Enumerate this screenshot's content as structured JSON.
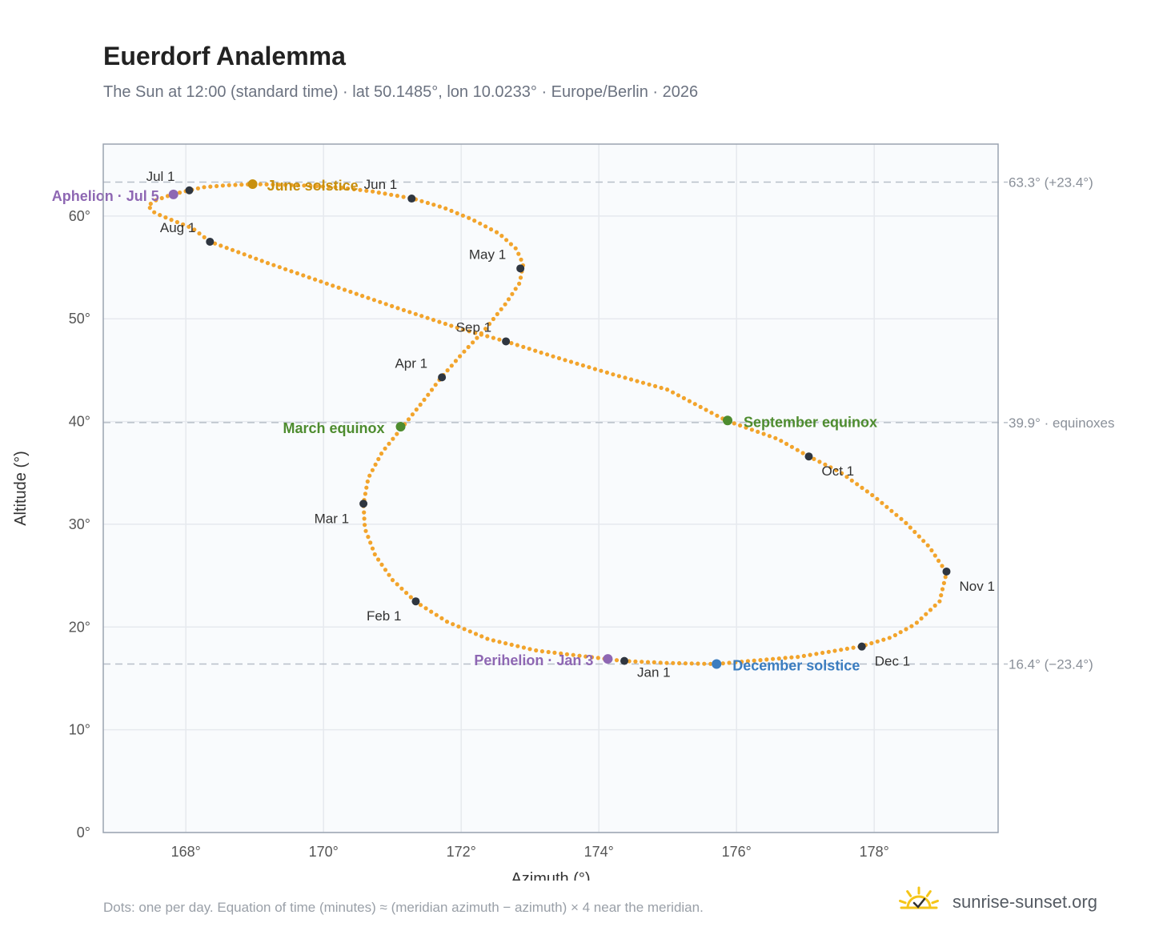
{
  "header": {
    "title": "Euerdorf Analemma",
    "subtitle": "The Sun at 12:00 (standard time) · lat 50.1485°, lon 10.0233° · Europe/Berlin · 2026"
  },
  "footer": {
    "note": "Dots: one per day. Equation of time (minutes) ≈ (meridian azimuth − azimuth) × 4 near the meridian.",
    "brand": "sunrise-sunset.org"
  },
  "colors": {
    "path": "#f2a42c",
    "month_dot": "#2f3640",
    "equinox": "#4e8c2f",
    "june_solstice": "#c8900f",
    "december_solstice": "#3b7dc0",
    "apsis": "#8e67b3",
    "ref_line": "#b8bfc8",
    "grid": "#e6e9ee",
    "plot_bg": "#f9fbfd",
    "frame": "#9aa3b0",
    "logo": "#f5c518"
  },
  "chart_data": {
    "type": "scatter",
    "xlabel": "Azimuth (°)",
    "ylabel": "Altitude (°)",
    "xlim": [
      166.8,
      179.8
    ],
    "ylim": [
      0,
      67
    ],
    "xticks": [
      168,
      170,
      172,
      174,
      176,
      178
    ],
    "xtick_labels": [
      "168°",
      "170°",
      "172°",
      "174°",
      "176°",
      "178°"
    ],
    "yticks": [
      0,
      10,
      20,
      30,
      40,
      50,
      60
    ],
    "ytick_labels": [
      "0°",
      "10°",
      "20°",
      "30°",
      "40°",
      "50°",
      "60°"
    ],
    "grid": true,
    "path_points": [
      [
        174.35,
        16.7
      ],
      [
        173.85,
        17.1
      ],
      [
        173.1,
        17.7
      ],
      [
        172.4,
        18.8
      ],
      [
        171.8,
        20.5
      ],
      [
        171.35,
        22.4
      ],
      [
        171.0,
        24.6
      ],
      [
        170.75,
        27.0
      ],
      [
        170.6,
        29.6
      ],
      [
        170.58,
        32.0
      ],
      [
        170.65,
        34.5
      ],
      [
        170.85,
        37.0
      ],
      [
        171.15,
        39.5
      ],
      [
        171.45,
        42.0
      ],
      [
        171.7,
        44.2
      ],
      [
        172.0,
        46.5
      ],
      [
        172.35,
        49.0
      ],
      [
        172.65,
        51.5
      ],
      [
        172.85,
        53.5
      ],
      [
        172.9,
        55.3
      ],
      [
        172.8,
        56.8
      ],
      [
        172.55,
        58.3
      ],
      [
        172.15,
        59.7
      ],
      [
        171.75,
        60.8
      ],
      [
        171.3,
        61.7
      ],
      [
        170.7,
        62.4
      ],
      [
        170.2,
        62.8
      ],
      [
        169.6,
        63.0
      ],
      [
        169.0,
        63.1
      ],
      [
        168.6,
        63.0
      ],
      [
        168.25,
        62.8
      ],
      [
        168.05,
        62.5
      ],
      [
        167.8,
        62.1
      ],
      [
        167.55,
        61.5
      ],
      [
        167.45,
        61.0
      ],
      [
        167.55,
        60.3
      ],
      [
        167.8,
        59.6
      ],
      [
        168.1,
        58.8
      ],
      [
        168.35,
        57.5
      ],
      [
        169.2,
        55.4
      ],
      [
        170.1,
        53.3
      ],
      [
        171.05,
        51.1
      ],
      [
        172.0,
        49.0
      ],
      [
        172.65,
        47.8
      ],
      [
        173.4,
        46.2
      ],
      [
        174.2,
        44.6
      ],
      [
        175.0,
        43.1
      ],
      [
        175.85,
        40.1
      ],
      [
        176.6,
        38.3
      ],
      [
        177.05,
        36.6
      ],
      [
        177.5,
        35.1
      ],
      [
        178.0,
        32.7
      ],
      [
        178.45,
        30.2
      ],
      [
        178.8,
        27.8
      ],
      [
        179.05,
        25.3
      ],
      [
        178.95,
        22.5
      ],
      [
        178.6,
        20.3
      ],
      [
        178.25,
        19.0
      ],
      [
        177.8,
        18.1
      ],
      [
        176.9,
        17.1
      ],
      [
        176.2,
        16.7
      ],
      [
        175.7,
        16.4
      ],
      [
        175.0,
        16.5
      ],
      [
        174.35,
        16.7
      ]
    ],
    "month_markers": [
      {
        "label": "Jan 1",
        "az": 174.37,
        "alt": 16.7
      },
      {
        "label": "Feb 1",
        "az": 171.34,
        "alt": 22.5
      },
      {
        "label": "Mar 1",
        "az": 170.58,
        "alt": 32.0
      },
      {
        "label": "Apr 1",
        "az": 171.72,
        "alt": 44.3
      },
      {
        "label": "May 1",
        "az": 172.86,
        "alt": 54.9
      },
      {
        "label": "Jun 1",
        "az": 171.28,
        "alt": 61.7
      },
      {
        "label": "Jul 1",
        "az": 168.05,
        "alt": 62.5
      },
      {
        "label": "Aug 1",
        "az": 168.35,
        "alt": 57.5
      },
      {
        "label": "Sep 1",
        "az": 172.65,
        "alt": 47.8
      },
      {
        "label": "Oct 1",
        "az": 177.05,
        "alt": 36.6
      },
      {
        "label": "Nov 1",
        "az": 179.05,
        "alt": 25.4
      },
      {
        "label": "Dec 1",
        "az": 177.82,
        "alt": 18.1
      }
    ],
    "events": [
      {
        "label": "June solstice",
        "az": 168.97,
        "alt": 63.1,
        "color_key": "june_solstice"
      },
      {
        "label": "March equinox",
        "az": 171.12,
        "alt": 39.5,
        "color_key": "equinox"
      },
      {
        "label": "September equinox",
        "az": 175.87,
        "alt": 40.1,
        "color_key": "equinox"
      },
      {
        "label": "December solstice",
        "az": 175.71,
        "alt": 16.4,
        "color_key": "december_solstice"
      },
      {
        "label": "Aphelion · Jul 5",
        "az": 167.82,
        "alt": 62.1,
        "color_key": "apsis"
      },
      {
        "label": "Perihelion · Jan 3",
        "az": 174.13,
        "alt": 16.9,
        "color_key": "apsis"
      }
    ],
    "reference_lines": [
      {
        "alt": 63.3,
        "label": "63.3° (+23.4°)"
      },
      {
        "alt": 39.9,
        "label": "39.9° · equinoxes"
      },
      {
        "alt": 16.4,
        "label": "16.4° (−23.4°)"
      }
    ]
  }
}
